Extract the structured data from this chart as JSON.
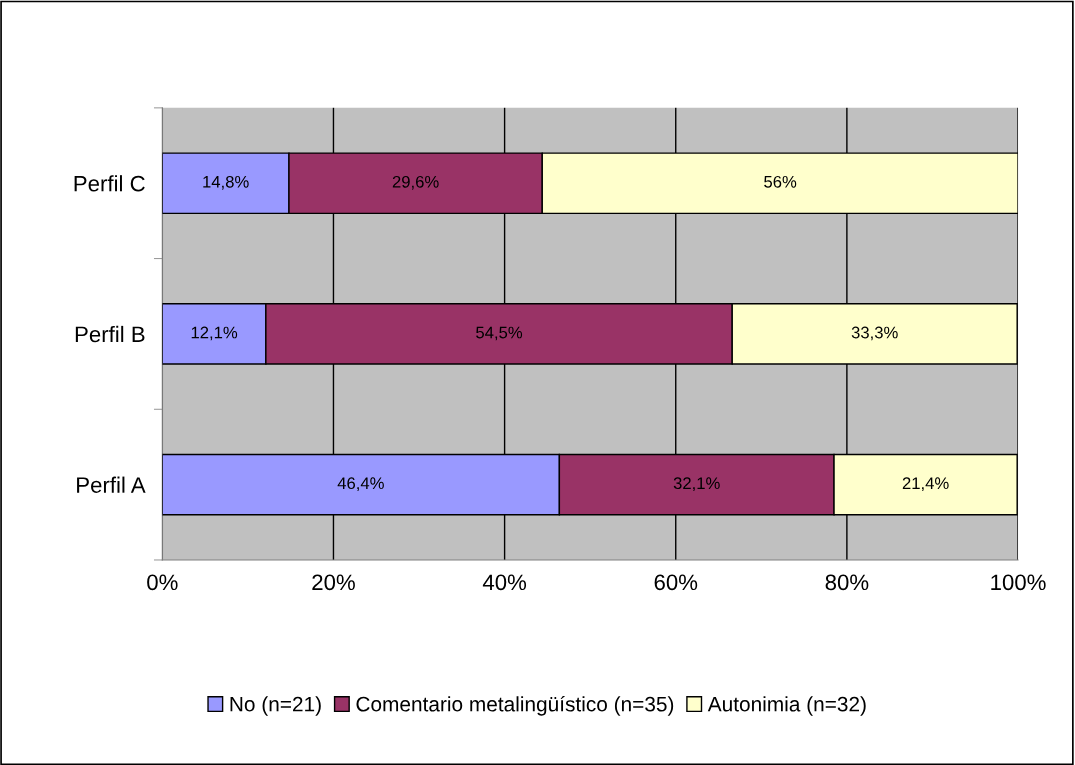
{
  "chart_data": {
    "type": "bar",
    "orientation": "horizontal",
    "stacked": true,
    "categories": [
      "Perfil C",
      "Perfil B",
      "Perfil A"
    ],
    "series": [
      {
        "name": "No (n=21)",
        "color": "#9999ff",
        "values": [
          14.8,
          12.1,
          46.4
        ],
        "value_labels": [
          "14,8%",
          "12,1%",
          "46,4%"
        ]
      },
      {
        "name": "Comentario metalingüístico (n=35)",
        "color": "#993366",
        "values": [
          29.6,
          54.5,
          32.1
        ],
        "value_labels": [
          "29,6%",
          "54,5%",
          "32,1%"
        ]
      },
      {
        "name": "Autonimia (n=32)",
        "color": "#ffffcc",
        "values": [
          55.6,
          33.3,
          21.4
        ],
        "value_labels": [
          "56%",
          "33,3%",
          "21,4%"
        ]
      }
    ],
    "xlim": [
      0,
      100
    ],
    "xticks": [
      {
        "value": 0,
        "label": "0%"
      },
      {
        "value": 20,
        "label": "20%"
      },
      {
        "value": 40,
        "label": "40%"
      },
      {
        "value": 60,
        "label": "60%"
      },
      {
        "value": 80,
        "label": "80%"
      },
      {
        "value": 100,
        "label": "100%"
      }
    ],
    "grid": "x",
    "legend": "bottom"
  }
}
